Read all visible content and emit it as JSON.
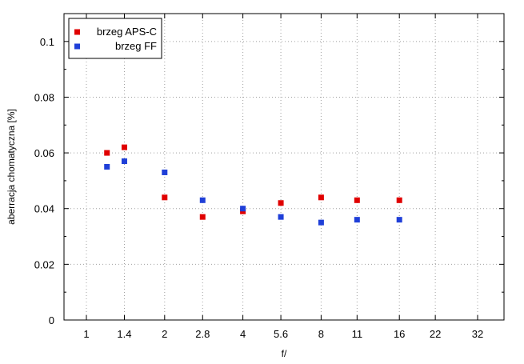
{
  "chart_data": {
    "type": "scatter",
    "title": "",
    "xlabel": "f/",
    "ylabel": "aberracja chomatyczna [%]",
    "x_ticks": [
      "1",
      "1.4",
      "2",
      "2.8",
      "4",
      "5.6",
      "8",
      "11",
      "16",
      "22",
      "32"
    ],
    "y_ticks": [
      "0",
      "0.02",
      "0.04",
      "0.06",
      "0.08",
      "0.1"
    ],
    "ylim": [
      0,
      0.11
    ],
    "grid": true,
    "legend_position": "top-left",
    "series": [
      {
        "name": "brzeg APS-C",
        "color": "#e00000",
        "x": [
          1.2,
          1.4,
          2,
          2.8,
          4,
          5.6,
          8,
          11,
          16
        ],
        "y": [
          0.06,
          0.062,
          0.044,
          0.037,
          0.039,
          0.042,
          0.044,
          0.043,
          0.043
        ]
      },
      {
        "name": "brzeg FF",
        "color": "#1f3fd8",
        "x": [
          1.2,
          1.4,
          2,
          2.8,
          4,
          5.6,
          8,
          11,
          16
        ],
        "y": [
          0.055,
          0.057,
          0.053,
          0.043,
          0.04,
          0.037,
          0.035,
          0.036,
          0.036
        ]
      }
    ]
  }
}
